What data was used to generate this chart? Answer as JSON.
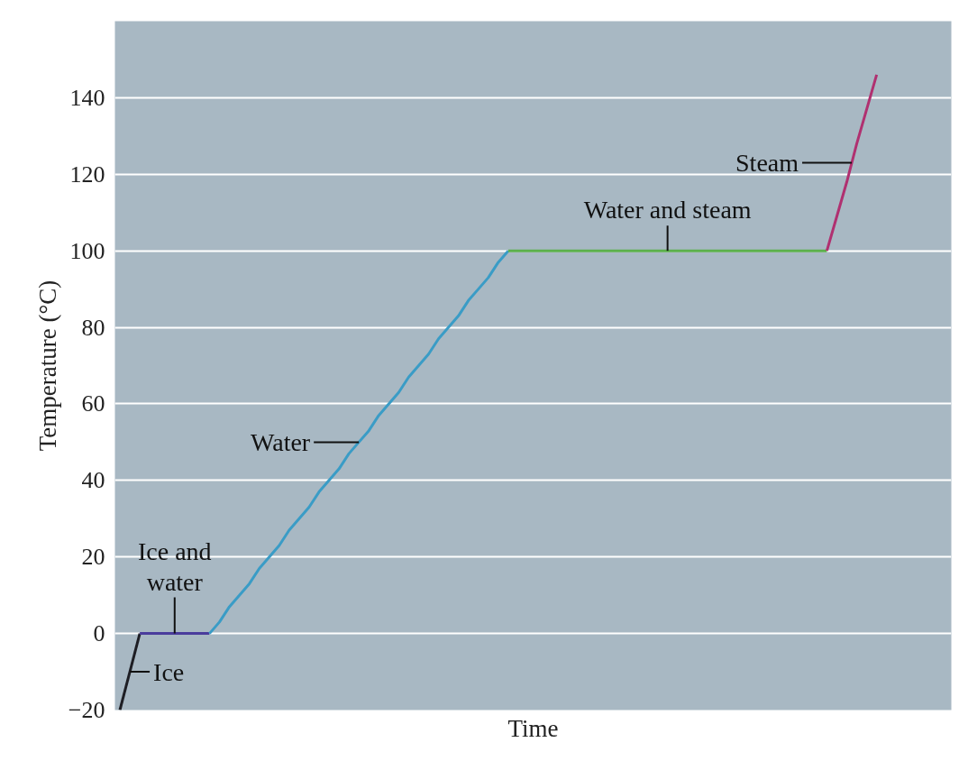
{
  "chart_data": {
    "type": "line",
    "xlabel": "Time",
    "ylabel": "Temperature (°C)",
    "categories": [
      null,
      null,
      null,
      null,
      null,
      null,
      null,
      null,
      null,
      null,
      null,
      null,
      null,
      null,
      null,
      null,
      null,
      null,
      null,
      null,
      null,
      null,
      null,
      null,
      null,
      null,
      null,
      null,
      null,
      null,
      null,
      null,
      null,
      null,
      null,
      null,
      null,
      null,
      null,
      null,
      null,
      null,
      null,
      null,
      null,
      null,
      null,
      null,
      null,
      null,
      null,
      null,
      null,
      null,
      null,
      null,
      null,
      null,
      null,
      null,
      null,
      null,
      null,
      null,
      null,
      null,
      null,
      null,
      null,
      null,
      null,
      null,
      null,
      null,
      null,
      null,
      null,
      null,
      null,
      null,
      null,
      null,
      null,
      null
    ],
    "series": [
      {
        "name": "Ice",
        "color": "#1e1e24",
        "values": [
          -20,
          -10,
          0,
          null,
          null,
          null,
          null,
          null,
          null,
          null,
          null,
          null,
          null,
          null,
          null,
          null,
          null,
          null,
          null,
          null,
          null,
          null,
          null,
          null,
          null,
          null,
          null,
          null,
          null,
          null,
          null,
          null,
          null,
          null,
          null,
          null,
          null,
          null,
          null,
          null,
          null,
          null,
          null,
          null,
          null,
          null,
          null,
          null,
          null,
          null,
          null,
          null,
          null,
          null,
          null,
          null,
          null,
          null,
          null,
          null,
          null,
          null,
          null,
          null,
          null,
          null,
          null,
          null,
          null,
          null,
          null,
          null,
          null,
          null,
          null,
          null,
          null,
          null,
          null,
          null,
          null,
          null,
          null,
          null
        ]
      },
      {
        "name": "Ice and water",
        "color": "#4a3c9c",
        "values": [
          null,
          null,
          0,
          0,
          0,
          0,
          0,
          0,
          0,
          0,
          null,
          null,
          null,
          null,
          null,
          null,
          null,
          null,
          null,
          null,
          null,
          null,
          null,
          null,
          null,
          null,
          null,
          null,
          null,
          null,
          null,
          null,
          null,
          null,
          null,
          null,
          null,
          null,
          null,
          null,
          null,
          null,
          null,
          null,
          null,
          null,
          null,
          null,
          null,
          null,
          null,
          null,
          null,
          null,
          null,
          null,
          null,
          null,
          null,
          null,
          null,
          null,
          null,
          null,
          null,
          null,
          null,
          null,
          null,
          null,
          null,
          null,
          null,
          null,
          null,
          null,
          null,
          null,
          null,
          null,
          null,
          null,
          null,
          null
        ]
      },
      {
        "name": "Water",
        "color": "#3a9cc6",
        "values": [
          null,
          null,
          null,
          null,
          null,
          null,
          null,
          null,
          null,
          0,
          3,
          7,
          10,
          13,
          17,
          20,
          23,
          27,
          30,
          33,
          37,
          40,
          43,
          47,
          50,
          53,
          57,
          60,
          63,
          67,
          70,
          73,
          77,
          80,
          83,
          87,
          90,
          93,
          97,
          100,
          null,
          null,
          null,
          null,
          null,
          null,
          null,
          null,
          null,
          null,
          null,
          null,
          null,
          null,
          null,
          null,
          null,
          null,
          null,
          null,
          null,
          null,
          null,
          null,
          null,
          null,
          null,
          null,
          null,
          null,
          null,
          null,
          null,
          null,
          null,
          null,
          null,
          null,
          null,
          null,
          null,
          null,
          null,
          null
        ]
      },
      {
        "name": "Water and steam",
        "color": "#5cb04c",
        "values": [
          null,
          null,
          null,
          null,
          null,
          null,
          null,
          null,
          null,
          null,
          null,
          null,
          null,
          null,
          null,
          null,
          null,
          null,
          null,
          null,
          null,
          null,
          null,
          null,
          null,
          null,
          null,
          null,
          null,
          null,
          null,
          null,
          null,
          null,
          null,
          null,
          null,
          null,
          null,
          100,
          100,
          100,
          100,
          100,
          100,
          100,
          100,
          100,
          100,
          100,
          100,
          100,
          100,
          100,
          100,
          100,
          100,
          100,
          100,
          100,
          100,
          100,
          100,
          100,
          100,
          100,
          100,
          100,
          100,
          100,
          100,
          100,
          null,
          null,
          null,
          null,
          null,
          null,
          null,
          null,
          null,
          null,
          null,
          null
        ]
      },
      {
        "name": "Steam",
        "color": "#b03070",
        "values": [
          null,
          null,
          null,
          null,
          null,
          null,
          null,
          null,
          null,
          null,
          null,
          null,
          null,
          null,
          null,
          null,
          null,
          null,
          null,
          null,
          null,
          null,
          null,
          null,
          null,
          null,
          null,
          null,
          null,
          null,
          null,
          null,
          null,
          null,
          null,
          null,
          null,
          null,
          null,
          null,
          null,
          null,
          null,
          null,
          null,
          null,
          null,
          null,
          null,
          null,
          null,
          null,
          null,
          null,
          null,
          null,
          null,
          null,
          null,
          null,
          null,
          null,
          null,
          null,
          null,
          null,
          null,
          null,
          null,
          null,
          null,
          100,
          109,
          118,
          128,
          137,
          146,
          null,
          null,
          null,
          null,
          null,
          null,
          null
        ]
      }
    ],
    "ylim": [
      -20,
      160
    ],
    "yticks": [
      -20,
      0,
      20,
      40,
      60,
      80,
      100,
      120,
      140
    ],
    "grid": "y",
    "tick_labels": "y",
    "legend": false,
    "marker": "none",
    "line_style": "solid"
  }
}
